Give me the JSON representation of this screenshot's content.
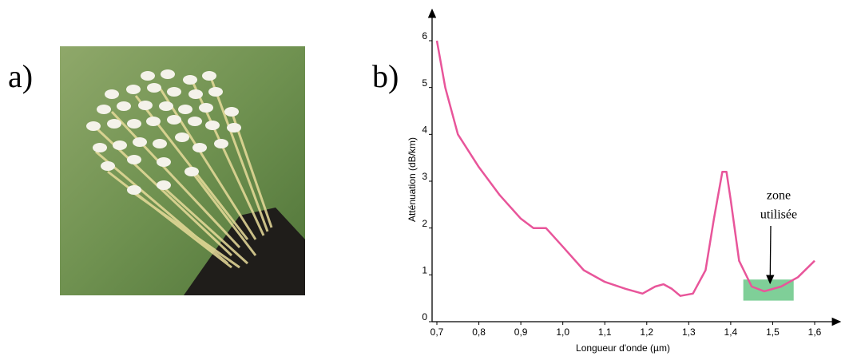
{
  "figure": {
    "panel_labels": [
      "a)",
      "b)"
    ]
  },
  "chart_data": {
    "type": "line",
    "x_label": "Longueur d'onde (µm)",
    "y_label": "Atténuation (dB/km)",
    "x": [
      0.7,
      0.72,
      0.75,
      0.8,
      0.85,
      0.9,
      0.93,
      0.96,
      1.0,
      1.05,
      1.1,
      1.15,
      1.19,
      1.22,
      1.24,
      1.26,
      1.28,
      1.31,
      1.34,
      1.36,
      1.38,
      1.39,
      1.4,
      1.42,
      1.45,
      1.48,
      1.52,
      1.56,
      1.6
    ],
    "series": [
      {
        "color": "#e8559a",
        "values": [
          6.0,
          5.0,
          4.0,
          3.3,
          2.7,
          2.2,
          2.0,
          2.0,
          1.6,
          1.1,
          0.85,
          0.7,
          0.6,
          0.75,
          0.8,
          0.7,
          0.55,
          0.6,
          1.1,
          2.2,
          3.2,
          3.2,
          2.6,
          1.3,
          0.75,
          0.65,
          0.75,
          0.95,
          1.3
        ]
      }
    ],
    "xlim": [
      0.7,
      1.6
    ],
    "ylim": [
      0,
      6
    ],
    "xticks": [
      {
        "value": 0.7,
        "label": "0,7"
      },
      {
        "value": 0.8,
        "label": "0,8"
      },
      {
        "value": 0.9,
        "label": "0,9"
      },
      {
        "value": 1.0,
        "label": "1,0"
      },
      {
        "value": 1.1,
        "label": "1,1"
      },
      {
        "value": 1.2,
        "label": "1,2"
      },
      {
        "value": 1.3,
        "label": "1,3"
      },
      {
        "value": 1.4,
        "label": "1,4"
      },
      {
        "value": 1.5,
        "label": "1,5"
      },
      {
        "value": 1.6,
        "label": "1,6"
      }
    ],
    "yticks": [
      0,
      1,
      2,
      3,
      4,
      5,
      6
    ],
    "highlight": {
      "x": [
        1.43,
        1.55
      ],
      "y": [
        0.45,
        0.9
      ],
      "color": "#7fcf98"
    },
    "annotation": {
      "lines": [
        "zone",
        "utilisée"
      ],
      "x": 1.49,
      "y": 0.65
    }
  }
}
